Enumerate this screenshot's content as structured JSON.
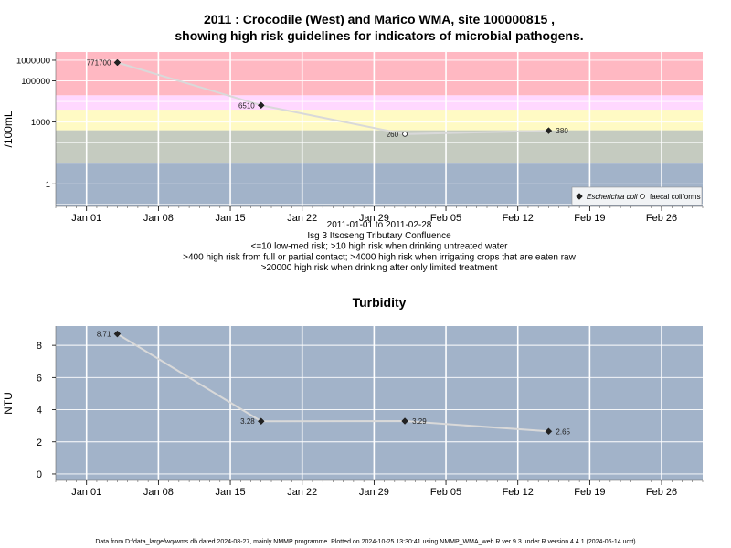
{
  "chart_data": [
    {
      "type": "line",
      "title_lines": [
        "2011 : Crocodile (West) and Marico WMA, site 100000815 ,",
        "showing high risk guidelines for indicators of microbial pathogens."
      ],
      "ylabel": "/100mL",
      "yscale": "log",
      "ylim": [
        0.08,
        2500000
      ],
      "y_ticks": [
        1,
        1000,
        100000,
        1000000
      ],
      "y_tick_labels": [
        "1",
        "1000",
        "100000",
        "1000000"
      ],
      "x_range": [
        "2010-12-29",
        "2011-03-02"
      ],
      "x_ticks": [
        "2011-01-01",
        "2011-01-08",
        "2011-01-15",
        "2011-01-22",
        "2011-01-29",
        "2011-02-05",
        "2011-02-12",
        "2011-02-19",
        "2011-02-26"
      ],
      "x_tick_labels": [
        "Jan 01",
        "Jan 08",
        "Jan 15",
        "Jan 22",
        "Jan 29",
        "Feb 05",
        "Feb 12",
        "Feb 19",
        "Feb 26"
      ],
      "bands": [
        {
          "from": 0.08,
          "to": 10,
          "color": "#a2b3c9"
        },
        {
          "from": 10,
          "to": 400,
          "color": "#c5cbc0"
        },
        {
          "from": 400,
          "to": 4000,
          "color": "#fffac4"
        },
        {
          "from": 4000,
          "to": 20000,
          "color": "#ffd8ff"
        },
        {
          "from": 20000,
          "to": 2500000,
          "color": "#ffb8c2"
        }
      ],
      "series": [
        {
          "name": "Escherichia coli",
          "marker": "diamond",
          "x": [
            "2011-01-04",
            "2011-01-18",
            "2011-02-01",
            "2011-02-15"
          ],
          "y": [
            771700,
            6510,
            260,
            380
          ],
          "labels": [
            "771700",
            "6510",
            "260",
            "380"
          ]
        },
        {
          "name": "faecal coliforms",
          "marker": "circle",
          "x": [],
          "y": [],
          "labels": []
        }
      ],
      "legend_position": "bottom-right",
      "caption_lines": [
        "2011-01-01 to 2011-02-28",
        "Isg 3 Itsoseng Tributary Confluence",
        "<=10 low-med risk; >10 high risk when drinking untreated water",
        ">400 high risk from full or partial contact; >4000 high risk when irrigating crops that are eaten raw",
        ">20000 high risk when drinking after only limited treatment"
      ]
    },
    {
      "type": "line",
      "title": "Turbidity",
      "ylabel": "NTU",
      "ylim": [
        -0.4,
        9.2
      ],
      "y_ticks": [
        0,
        2,
        4,
        6,
        8
      ],
      "y_tick_labels": [
        "0",
        "2",
        "4",
        "6",
        "8"
      ],
      "x_range": [
        "2010-12-29",
        "2011-03-02"
      ],
      "x_ticks": [
        "2011-01-01",
        "2011-01-08",
        "2011-01-15",
        "2011-01-22",
        "2011-01-29",
        "2011-02-05",
        "2011-02-12",
        "2011-02-19",
        "2011-02-26"
      ],
      "x_tick_labels": [
        "Jan 01",
        "Jan 08",
        "Jan 15",
        "Jan 22",
        "Jan 29",
        "Feb 05",
        "Feb 12",
        "Feb 19",
        "Feb 26"
      ],
      "background": "#a2b3c9",
      "series": [
        {
          "marker": "diamond",
          "x": [
            "2011-01-04",
            "2011-01-18",
            "2011-02-01",
            "2011-02-15"
          ],
          "y": [
            8.71,
            3.28,
            3.29,
            2.65
          ],
          "labels": [
            "8.71",
            "3.28",
            "3.29",
            "2.65"
          ]
        }
      ]
    }
  ],
  "footer": "Data from D:/data_large/wq/wms.db dated 2024-08-27, mainly NMMP programme. Plotted on 2024-10-25 13:30:41 using NMMP_WMA_web.R ver 9.3 under R version 4.4.1 (2024-06-14 ucrt)"
}
